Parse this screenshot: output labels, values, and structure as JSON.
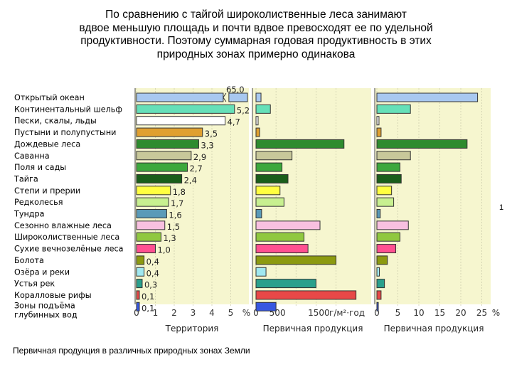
{
  "title_lines": [
    "По сравнению с тайгой широколиственные леса занимают",
    "вдвое меньшую площадь и почти вдвое превосходят ее по удельной",
    "продуктивности. Поэтому суммарная годовая продуктивность в этих",
    "природных зонах примерно одинакова"
  ],
  "caption": "Первичная продукция в различных природных зонах Земли",
  "side_number": "1",
  "chart_data": [
    {
      "type": "bar",
      "orientation": "horizontal",
      "categories": [
        "Открытый океан",
        "Континентальный шельф",
        "Пески, скалы, льды",
        "Пустыни и полупустыни",
        "Дождевые леса",
        "Саванна",
        "Поля и сады",
        "Тайга",
        "Степи и прерии",
        "Редколесья",
        "Тундра",
        "Сезонно влажные леса",
        "Широколиственные леса",
        "Сухие вечнозелёные леса",
        "Болота",
        "Озёра и реки",
        "Устья рек",
        "Коралловые рифы",
        "Зоны подъёма глубинных вод"
      ],
      "category_label_lines": [
        [
          "Открытый океан"
        ],
        [
          "Континентальный шельф"
        ],
        [
          "Пески, скалы, льды"
        ],
        [
          "Пустыни и полупустыни"
        ],
        [
          "Дождевые леса"
        ],
        [
          "Саванна"
        ],
        [
          "Поля и сады"
        ],
        [
          "Тайга"
        ],
        [
          "Степи и прерии"
        ],
        [
          "Редколесья"
        ],
        [
          "Тундра"
        ],
        [
          "Сезонно влажные леса"
        ],
        [
          "Широколиственные леса"
        ],
        [
          "Сухие вечнозелёные леса"
        ],
        [
          "Болота"
        ],
        [
          "Озёра и реки"
        ],
        [
          "Устья рек"
        ],
        [
          "Коралловые рифы"
        ],
        [
          "Зоны подъёма",
          "глубинных вод"
        ]
      ],
      "values": [
        65.0,
        5.2,
        4.7,
        3.5,
        3.3,
        2.9,
        2.7,
        2.4,
        1.8,
        1.7,
        1.6,
        1.5,
        1.3,
        1.0,
        0.4,
        0.4,
        0.3,
        0.1,
        0.1
      ],
      "value_labels": [
        "65,0",
        "5,2",
        "4,7",
        "3,5",
        "3,3",
        "2,9",
        "2,7",
        "2,4",
        "1,8",
        "1,7",
        "1,6",
        "1,5",
        "1,3",
        "1,0",
        "0,4",
        "0,4",
        "0,3",
        "0,1",
        "0,1"
      ],
      "axis_break_value": 65.0,
      "xlim": [
        0,
        5.5
      ],
      "xticks": [
        "0",
        "1",
        "2",
        "3",
        "4",
        "5",
        "%"
      ],
      "xlabel": "Территория",
      "colors": [
        "#a8c8f0",
        "#66e0b8",
        "#ffffff",
        "#e0a030",
        "#2e8b2e",
        "#c8c89a",
        "#3ca83c",
        "#1a5e1a",
        "#ffff40",
        "#c8f090",
        "#5a9ab8",
        "#f8c0e0",
        "#90c840",
        "#ff5090",
        "#8c9a10",
        "#a0e8f0",
        "#2aa08c",
        "#e84848",
        "#3858e0"
      ]
    },
    {
      "type": "bar",
      "orientation": "horizontal",
      "values": [
        125,
        360,
        3,
        90,
        2200,
        900,
        650,
        800,
        600,
        700,
        140,
        1600,
        1200,
        1300,
        2000,
        250,
        1500,
        2500,
        500
      ],
      "xlim": [
        0,
        2400
      ],
      "xticks": [
        "0",
        "500",
        "1500",
        "г/м²·год"
      ],
      "xlabel": "Первичная продукция"
    },
    {
      "type": "bar",
      "orientation": "horizontal",
      "values": [
        24.0,
        8.0,
        0.5,
        1.0,
        21.5,
        8.0,
        5.5,
        5.8,
        3.5,
        4.0,
        0.8,
        7.5,
        5.5,
        4.5,
        2.5,
        0.6,
        1.8,
        1.0,
        0.1
      ],
      "xlim": [
        0,
        27.5
      ],
      "xticks": [
        "0",
        "5",
        "10",
        "15",
        "20",
        "25",
        "%"
      ],
      "xlabel": "Первичная продукция"
    }
  ]
}
